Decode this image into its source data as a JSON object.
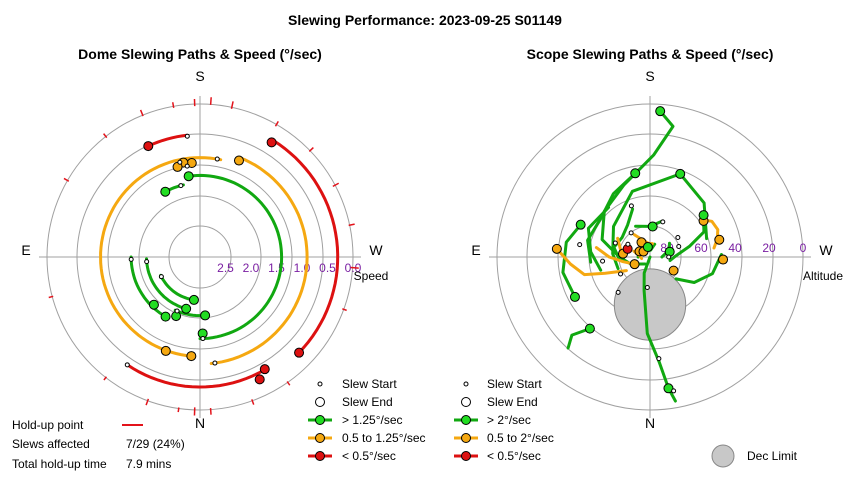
{
  "title": "Slewing Performance: 2023-09-25 S01149",
  "colors": {
    "fast": "#11a811",
    "fast_fill": "#22dd22",
    "medium": "#f5a811",
    "medium_fill": "#f5a811",
    "slow": "#dd1111",
    "slow_fill": "#dd1111",
    "holdup": "#e3131b",
    "grid": "#a0a0a0",
    "axis_label": "#7a1fa2",
    "dec_limit": "#c8c8c8"
  },
  "chart_data": [
    {
      "type": "polar",
      "title": "Dome Slewing Paths & Speed (°/sec)",
      "radial_label": "Speed",
      "radial_range": [
        0.0,
        3.0
      ],
      "radial_ticks": [
        2.5,
        2.0,
        1.5,
        1.0,
        0.5,
        0.0
      ],
      "radial_tick_labels": [
        "2.5",
        "2.0",
        "1.5",
        "1.0",
        "0.5",
        "0.0"
      ],
      "directions": {
        "top": "S",
        "bottom": "N",
        "left": "E",
        "right": "W"
      },
      "grid": true,
      "legend": {
        "start": "Slew Start",
        "end": "Slew End",
        "fast": "> 1.25°/sec",
        "medium": "0.5 to 1.25°/sec",
        "slow": "< 0.5°/sec"
      },
      "arcs": [
        {
          "speed": "slow",
          "r": 0.3,
          "from": 316,
          "to": 58
        },
        {
          "speed": "slow",
          "r": 0.45,
          "from": 236,
          "to": 300
        },
        {
          "speed": "slow",
          "r": 0.6,
          "from": 96,
          "to": 115
        },
        {
          "speed": "medium",
          "r": 0.9,
          "from": 276,
          "to": 68
        },
        {
          "speed": "medium",
          "r": 1.05,
          "from": 78,
          "to": 265
        },
        {
          "speed": "medium",
          "r": 1.15,
          "from": 95,
          "to": 102
        },
        {
          "speed": "fast",
          "r": 1.4,
          "from": 270,
          "to": 98
        },
        {
          "speed": "fast",
          "r": 1.55,
          "from": 103,
          "to": 118
        },
        {
          "speed": "fast",
          "r": 1.65,
          "from": 180,
          "to": 240
        },
        {
          "speed": "fast",
          "r": 1.85,
          "from": 245,
          "to": 275
        },
        {
          "speed": "fast",
          "r": 1.95,
          "from": 182,
          "to": 255
        },
        {
          "speed": "fast",
          "r": 2.15,
          "from": 205,
          "to": 262
        }
      ],
      "holdups": [
        {
          "az": 12,
          "r0": 0.02,
          "r1": -0.1
        },
        {
          "az": 28,
          "r0": 0.05,
          "r1": -0.08
        },
        {
          "az": 44,
          "r0": 0.02,
          "r1": -0.09
        },
        {
          "az": 60,
          "r0": 0.04,
          "r1": -0.07
        },
        {
          "az": 78,
          "r0": 0.03,
          "r1": -0.12
        },
        {
          "az": 86,
          "r0": 0.01,
          "r1": -0.14
        },
        {
          "az": 92,
          "r0": 0.04,
          "r1": -0.1
        },
        {
          "az": 100,
          "r0": 0.03,
          "r1": -0.08
        },
        {
          "az": 112,
          "r0": 0.02,
          "r1": -0.11
        },
        {
          "az": 128,
          "r0": 0.03,
          "r1": -0.07
        },
        {
          "az": 150,
          "r0": 0.03,
          "r1": -0.08
        },
        {
          "az": 195,
          "r0": 0.02,
          "r1": -0.07
        },
        {
          "az": 232,
          "r0": 0.02,
          "r1": -0.06
        },
        {
          "az": 250,
          "r0": 0.04,
          "r1": -0.09
        },
        {
          "az": 262,
          "r0": 0.02,
          "r1": -0.07
        },
        {
          "az": 268,
          "r0": 0.05,
          "r1": -0.11
        },
        {
          "az": 274,
          "r0": 0.03,
          "r1": -0.1
        },
        {
          "az": 290,
          "r0": 0.03,
          "r1": -0.08
        },
        {
          "az": 305,
          "r0": 0.02,
          "r1": -0.07
        },
        {
          "az": 340,
          "r0": 0.03,
          "r1": -0.06
        },
        {
          "az": 356,
          "r0": 0.04,
          "r1": -0.12
        }
      ],
      "starts": [
        {
          "r": 0.45,
          "az": 236
        },
        {
          "r": 0.62,
          "az": 96
        },
        {
          "r": 0.9,
          "az": 278
        },
        {
          "r": 1.05,
          "az": 80
        },
        {
          "r": 1.4,
          "az": 272
        },
        {
          "r": 1.55,
          "az": 105
        },
        {
          "r": 1.65,
          "az": 182
        },
        {
          "r": 1.95,
          "az": 185
        },
        {
          "r": 2.15,
          "az": 207
        },
        {
          "r": 1.85,
          "az": 247
        },
        {
          "r": 1.2,
          "az": 98
        },
        {
          "r": 1.1,
          "az": 102
        }
      ],
      "ends": [
        {
          "r": 0.3,
          "az": 316,
          "speed": "slow"
        },
        {
          "r": 0.35,
          "az": 58,
          "speed": "slow"
        },
        {
          "r": 0.33,
          "az": 296,
          "speed": "slow"
        },
        {
          "r": 0.46,
          "az": 300,
          "speed": "slow"
        },
        {
          "r": 0.6,
          "az": 115,
          "speed": "slow"
        },
        {
          "r": 0.96,
          "az": 68,
          "speed": "medium"
        },
        {
          "r": 1.05,
          "az": 265,
          "speed": "medium"
        },
        {
          "r": 1.15,
          "az": 95,
          "speed": "medium"
        },
        {
          "r": 1.12,
          "az": 100,
          "speed": "medium"
        },
        {
          "r": 1.18,
          "az": 104,
          "speed": "medium"
        },
        {
          "r": 1.04,
          "az": 250,
          "speed": "medium"
        },
        {
          "r": 1.4,
          "az": 98,
          "speed": "fast"
        },
        {
          "r": 1.55,
          "az": 118,
          "speed": "fast"
        },
        {
          "r": 1.65,
          "az": 240,
          "speed": "fast"
        },
        {
          "r": 1.95,
          "az": 255,
          "speed": "fast"
        },
        {
          "r": 2.15,
          "az": 262,
          "speed": "fast"
        },
        {
          "r": 1.85,
          "az": 275,
          "speed": "fast"
        },
        {
          "r": 1.5,
          "az": 272,
          "speed": "fast"
        },
        {
          "r": 1.7,
          "az": 226,
          "speed": "fast"
        },
        {
          "r": 1.75,
          "az": 248,
          "speed": "fast"
        }
      ]
    },
    {
      "type": "polar",
      "title": "Scope Slewing Paths & Speed (°/sec)",
      "radial_label": "Altitude",
      "radial_range": [
        90,
        0
      ],
      "radial_ticks": [
        80,
        60,
        40,
        20,
        0
      ],
      "radial_tick_labels": [
        "80",
        "60",
        "40",
        "20",
        "0"
      ],
      "directions": {
        "top": "S",
        "bottom": "N",
        "left": "E",
        "right": "W"
      },
      "grid": true,
      "legend": {
        "start": "Slew Start",
        "end": "Slew End",
        "fast": "> 2°/sec",
        "medium": "0.5 to 2°/sec",
        "slow": "< 0.5°/sec",
        "dec": "Dec Limit"
      },
      "dec_limit": {
        "az": 0,
        "alt": 62,
        "radius_deg": 20
      },
      "paths": [
        {
          "speed": "fast",
          "points": [
            [
              30,
              90
            ],
            [
              20,
              80
            ],
            [
              10,
              70
            ],
            [
              2,
              45
            ],
            [
              355,
              28
            ],
            [
              352,
              12
            ],
            [
              350,
              4
            ]
          ]
        },
        {
          "speed": "fast",
          "points": [
            [
              35,
              85
            ],
            [
              70,
              78
            ],
            [
              90,
              72
            ],
            [
              110,
              60
            ],
            [
              135,
              52
            ],
            [
              160,
              45
            ],
            [
              182,
              30
            ],
            [
              190,
              12
            ],
            [
              184,
              4
            ]
          ]
        },
        {
          "speed": "fast",
          "points": [
            [
              70,
              70
            ],
            [
              95,
              68
            ],
            [
              130,
              62
            ],
            [
              165,
              50
            ],
            [
              200,
              38
            ],
            [
              225,
              45
            ],
            [
              252,
              55
            ]
          ]
        },
        {
          "speed": "fast",
          "points": [
            [
              85,
              55
            ],
            [
              105,
              52
            ],
            [
              130,
              53
            ],
            [
              150,
              47
            ],
            [
              170,
              40
            ]
          ]
        },
        {
          "speed": "fast",
          "points": [
            [
              75,
              60
            ],
            [
              95,
              55
            ],
            [
              115,
              50
            ],
            [
              140,
              52
            ]
          ]
        },
        {
          "speed": "fast",
          "points": [
            [
              85,
              72
            ],
            [
              105,
              68
            ],
            [
              125,
              70
            ],
            [
              145,
              67
            ],
            [
              160,
              60
            ]
          ]
        },
        {
          "speed": "fast",
          "points": [
            [
              65,
              40
            ],
            [
              80,
              38
            ],
            [
              100,
              40
            ],
            [
              115,
              45
            ]
          ]
        },
        {
          "speed": "fast",
          "points": [
            [
              280,
              78
            ],
            [
              268,
              75
            ],
            [
              255,
              66
            ],
            [
              245,
              55
            ],
            [
              232,
              50
            ]
          ]
        },
        {
          "speed": "fast",
          "points": [
            [
              310,
              70
            ],
            [
              300,
              60
            ],
            [
              285,
              52
            ],
            [
              268,
              48
            ]
          ]
        },
        {
          "speed": "fast",
          "points": [
            [
              40,
              35
            ],
            [
              45,
              25
            ],
            [
              42,
              18
            ]
          ]
        },
        {
          "speed": "fast",
          "points": [
            [
              155,
              70
            ],
            [
              180,
              72
            ],
            [
              198,
              68
            ]
          ]
        },
        {
          "speed": "fast",
          "points": [
            [
              270,
              83
            ],
            [
              250,
              78
            ],
            [
              235,
              76
            ]
          ]
        },
        {
          "speed": "fast",
          "points": [
            [
              200,
              82
            ],
            [
              185,
              86
            ],
            [
              150,
              86
            ],
            [
              110,
              84
            ],
            [
              90,
              83
            ]
          ]
        },
        {
          "speed": "medium",
          "points": [
            [
              95,
              35
            ],
            [
              85,
              43
            ],
            [
              75,
              50
            ],
            [
              70,
              62
            ],
            [
              60,
              74
            ]
          ]
        },
        {
          "speed": "medium",
          "points": [
            [
              100,
              58
            ],
            [
              90,
              66
            ],
            [
              80,
              74
            ],
            [
              65,
              80
            ]
          ]
        },
        {
          "speed": "medium",
          "points": [
            [
              145,
              74
            ],
            [
              160,
              80
            ],
            [
              175,
              82
            ],
            [
              190,
              82
            ]
          ]
        },
        {
          "speed": "medium",
          "points": [
            [
              262,
              52
            ],
            [
              255,
              49
            ],
            [
              248,
              47
            ],
            [
              240,
              48
            ],
            [
              235,
              52
            ]
          ]
        },
        {
          "speed": "medium",
          "points": [
            [
              120,
              68
            ],
            [
              105,
              72
            ],
            [
              95,
              75
            ]
          ]
        },
        {
          "speed": "medium",
          "points": [
            [
              110,
              80
            ],
            [
              95,
              84
            ],
            [
              80,
              85
            ]
          ]
        }
      ],
      "starts": [
        {
          "az": 5,
          "alt": 72
        },
        {
          "az": 350,
          "alt": 10
        },
        {
          "az": 60,
          "alt": 70
        },
        {
          "az": 120,
          "alt": 75
        },
        {
          "az": 200,
          "alt": 68
        },
        {
          "az": 355,
          "alt": 30
        },
        {
          "az": 250,
          "alt": 72
        },
        {
          "az": 270,
          "alt": 79
        },
        {
          "az": 235,
          "alt": 70
        },
        {
          "az": 42,
          "alt": 62
        },
        {
          "az": 142,
          "alt": 72
        },
        {
          "az": 160,
          "alt": 58
        },
        {
          "az": 112,
          "alt": 68
        },
        {
          "az": 85,
          "alt": 62
        },
        {
          "az": 100,
          "alt": 48
        }
      ],
      "ends": [
        {
          "az": 184,
          "alt": 4,
          "speed": "fast"
        },
        {
          "az": 352,
          "alt": 12,
          "speed": "fast"
        },
        {
          "az": 95,
          "alt": 35,
          "speed": "medium"
        },
        {
          "az": 272,
          "alt": 47,
          "speed": "medium"
        },
        {
          "az": 256,
          "alt": 48,
          "speed": "medium"
        },
        {
          "az": 236,
          "alt": 52,
          "speed": "medium"
        },
        {
          "az": 300,
          "alt": 74,
          "speed": "medium"
        },
        {
          "az": 65,
          "alt": 80,
          "speed": "medium"
        },
        {
          "az": 97,
          "alt": 74,
          "speed": "medium"
        },
        {
          "az": 150,
          "alt": 80,
          "speed": "medium"
        },
        {
          "az": 118,
          "alt": 83,
          "speed": "medium"
        },
        {
          "az": 130,
          "alt": 85,
          "speed": "medium"
        },
        {
          "az": 110,
          "alt": 76,
          "speed": "slow"
        },
        {
          "az": 40,
          "alt": 35,
          "speed": "fast"
        },
        {
          "az": 62,
          "alt": 40,
          "speed": "fast"
        },
        {
          "az": 115,
          "alt": 45,
          "speed": "fast"
        },
        {
          "az": 170,
          "alt": 40,
          "speed": "fast"
        },
        {
          "az": 232,
          "alt": 50,
          "speed": "fast"
        },
        {
          "az": 200,
          "alt": 38,
          "speed": "fast"
        },
        {
          "az": 168,
          "alt": 84,
          "speed": "fast"
        },
        {
          "az": 185,
          "alt": 72,
          "speed": "fast"
        },
        {
          "az": 255,
          "alt": 78,
          "speed": "fast"
        }
      ]
    }
  ],
  "footer": {
    "holdup_label": "Hold-up point",
    "slews_label": "Slews affected",
    "slews_value": "7/29 (24%)",
    "total_label": "Total hold-up time",
    "total_value": "7.9 mins"
  }
}
